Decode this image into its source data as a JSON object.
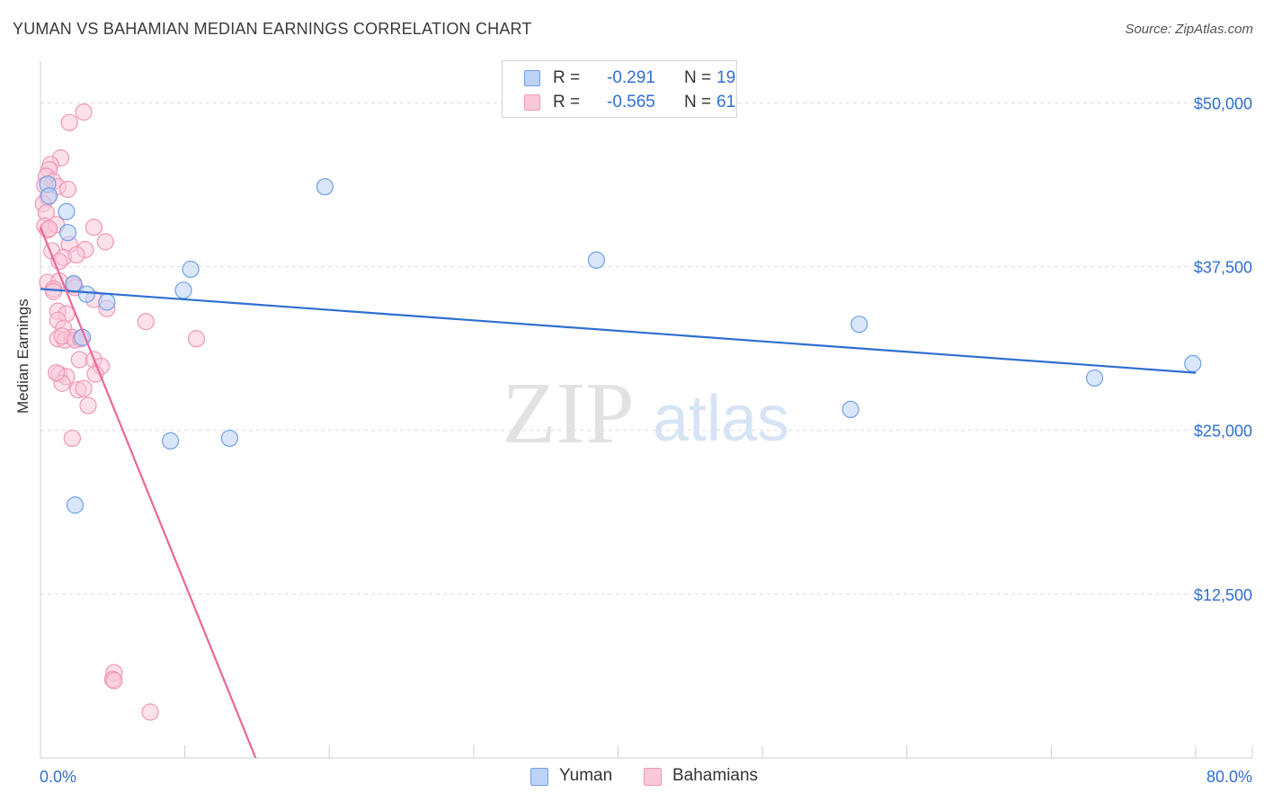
{
  "header": {
    "title": "YUMAN VS BAHAMIAN MEDIAN EARNINGS CORRELATION CHART",
    "source": "Source: ZipAtlas.com"
  },
  "watermark": {
    "zip": "ZIP",
    "atlas": "atlas"
  },
  "legend_top": [
    {
      "r_label": "R =",
      "r_value": "-0.291",
      "n_label": "N =",
      "n_value": "19",
      "color": "#6fa0e8",
      "fill": "#bcd3f5"
    },
    {
      "r_label": "R =",
      "r_value": "-0.565",
      "n_label": "N =",
      "n_value": "61",
      "color": "#f096b5",
      "fill": "#f9c9da"
    }
  ],
  "legend_bottom": [
    {
      "label": "Yuman",
      "color": "#6fa0e8",
      "fill": "#bcd3f5"
    },
    {
      "label": "Bahamians",
      "color": "#f096b5",
      "fill": "#f9c9da"
    }
  ],
  "chart_data": {
    "type": "scatter",
    "title": "YUMAN VS BAHAMIAN MEDIAN EARNINGS CORRELATION CHART",
    "xlabel": "",
    "ylabel": "Median Earnings",
    "xlim": [
      0,
      80
    ],
    "ylim": [
      0,
      52500
    ],
    "x_tick_labels": [
      "0.0%",
      "80.0%"
    ],
    "y_ticks": [
      {
        "value": 12500,
        "label": "$12,500"
      },
      {
        "value": 25000,
        "label": "$25,000"
      },
      {
        "value": 37500,
        "label": "$37,500"
      },
      {
        "value": 50000,
        "label": "$50,000"
      }
    ],
    "grid": true,
    "series": [
      {
        "name": "Yuman",
        "stroke": "#6fa0e8",
        "fill": "#bcd3f5",
        "line_color": "#2f6fd0",
        "trendline": {
          "x0": 0,
          "y0": 35800,
          "x1": 80,
          "y1": 29400
        },
        "points": [
          [
            0.5,
            43800
          ],
          [
            0.6,
            42900
          ],
          [
            1.8,
            41700
          ],
          [
            1.9,
            40100
          ],
          [
            2.3,
            36200
          ],
          [
            3.2,
            35400
          ],
          [
            2.9,
            32100
          ],
          [
            4.6,
            34800
          ],
          [
            9.9,
            35700
          ],
          [
            10.4,
            37300
          ],
          [
            19.7,
            43600
          ],
          [
            38.5,
            38000
          ],
          [
            56.1,
            26600
          ],
          [
            56.7,
            33100
          ],
          [
            73.0,
            29000
          ],
          [
            79.8,
            30100
          ],
          [
            9.0,
            24200
          ],
          [
            13.1,
            24400
          ],
          [
            2.4,
            19300
          ]
        ]
      },
      {
        "name": "Bahamians",
        "stroke": "#f096b5",
        "fill": "#f9c9da",
        "line_color": "#e8679a",
        "trendline": {
          "x0": 0,
          "y0": 40500,
          "x1": 14.9,
          "y1": 0
        },
        "points": [
          [
            3.0,
            49300
          ],
          [
            2.0,
            48500
          ],
          [
            1.4,
            45800
          ],
          [
            0.7,
            45300
          ],
          [
            0.6,
            44900
          ],
          [
            0.4,
            44400
          ],
          [
            0.9,
            44000
          ],
          [
            1.2,
            43600
          ],
          [
            0.3,
            43700
          ],
          [
            1.9,
            43400
          ],
          [
            0.5,
            42800
          ],
          [
            0.2,
            42300
          ],
          [
            0.4,
            41600
          ],
          [
            0.3,
            40600
          ],
          [
            0.5,
            40300
          ],
          [
            1.1,
            40700
          ],
          [
            3.7,
            40500
          ],
          [
            2.0,
            39200
          ],
          [
            4.5,
            39400
          ],
          [
            0.8,
            38700
          ],
          [
            1.6,
            38200
          ],
          [
            3.1,
            38800
          ],
          [
            2.5,
            38400
          ],
          [
            1.3,
            37900
          ],
          [
            0.5,
            36300
          ],
          [
            1.3,
            36400
          ],
          [
            0.9,
            35800
          ],
          [
            2.3,
            36100
          ],
          [
            0.9,
            35600
          ],
          [
            2.4,
            35900
          ],
          [
            4.6,
            34300
          ],
          [
            1.2,
            34100
          ],
          [
            1.8,
            33900
          ],
          [
            3.7,
            35000
          ],
          [
            7.3,
            33300
          ],
          [
            1.2,
            33400
          ],
          [
            1.6,
            32800
          ],
          [
            1.2,
            32000
          ],
          [
            1.7,
            31900
          ],
          [
            2.2,
            32100
          ],
          [
            1.5,
            32200
          ],
          [
            2.4,
            31900
          ],
          [
            2.8,
            32000
          ],
          [
            10.8,
            32000
          ],
          [
            2.7,
            30400
          ],
          [
            3.7,
            30400
          ],
          [
            4.2,
            29900
          ],
          [
            1.3,
            29300
          ],
          [
            1.8,
            29100
          ],
          [
            3.8,
            29300
          ],
          [
            1.5,
            28600
          ],
          [
            2.6,
            28100
          ],
          [
            3.0,
            28200
          ],
          [
            3.3,
            26900
          ],
          [
            2.2,
            24400
          ],
          [
            5.1,
            6500
          ],
          [
            5.0,
            6000
          ],
          [
            5.1,
            5900
          ],
          [
            7.6,
            3500
          ],
          [
            1.1,
            29400
          ],
          [
            0.6,
            40400
          ]
        ]
      }
    ]
  }
}
